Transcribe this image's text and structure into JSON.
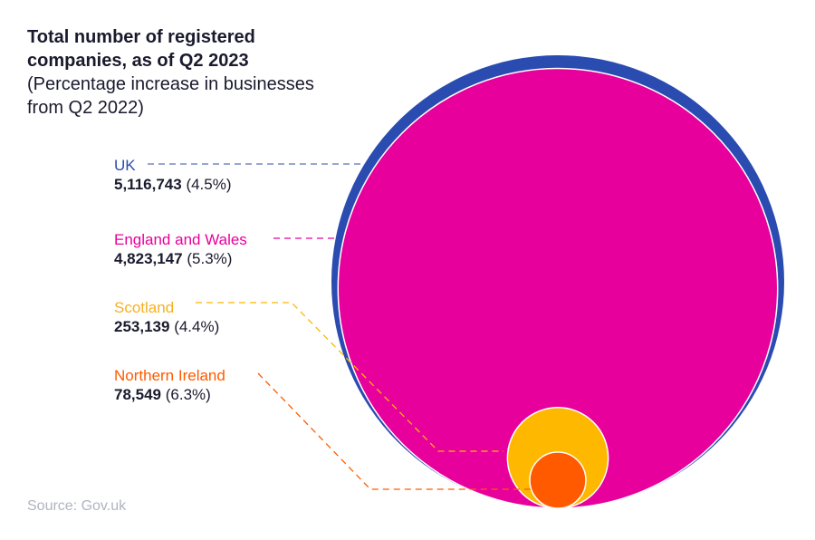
{
  "chart_data": {
    "type": "bubble",
    "title": "Total number of registered companies, as of Q2 2023",
    "subtitle": "(Percentage increase in businesses from Q2 2022)",
    "series": [
      {
        "name": "UK",
        "value": 5116743,
        "value_label": "5,116,743",
        "change_label": "(4.5%)",
        "change_pct": 4.5,
        "color": "#2a4bb0"
      },
      {
        "name": "England and Wales",
        "value": 4823147,
        "value_label": "4,823,147",
        "change_label": "(5.3%)",
        "change_pct": 5.3,
        "color": "#e8009c"
      },
      {
        "name": "Scotland",
        "value": 253139,
        "value_label": "253,139",
        "change_label": "(4.4%)",
        "change_pct": 4.4,
        "color": "#ffb800"
      },
      {
        "name": "Northern Ireland",
        "value": 78549,
        "value_label": "78,549",
        "change_label": "(6.3%)",
        "change_pct": 6.3,
        "color": "#ff5a00"
      }
    ],
    "source": "Source: Gov.uk"
  }
}
